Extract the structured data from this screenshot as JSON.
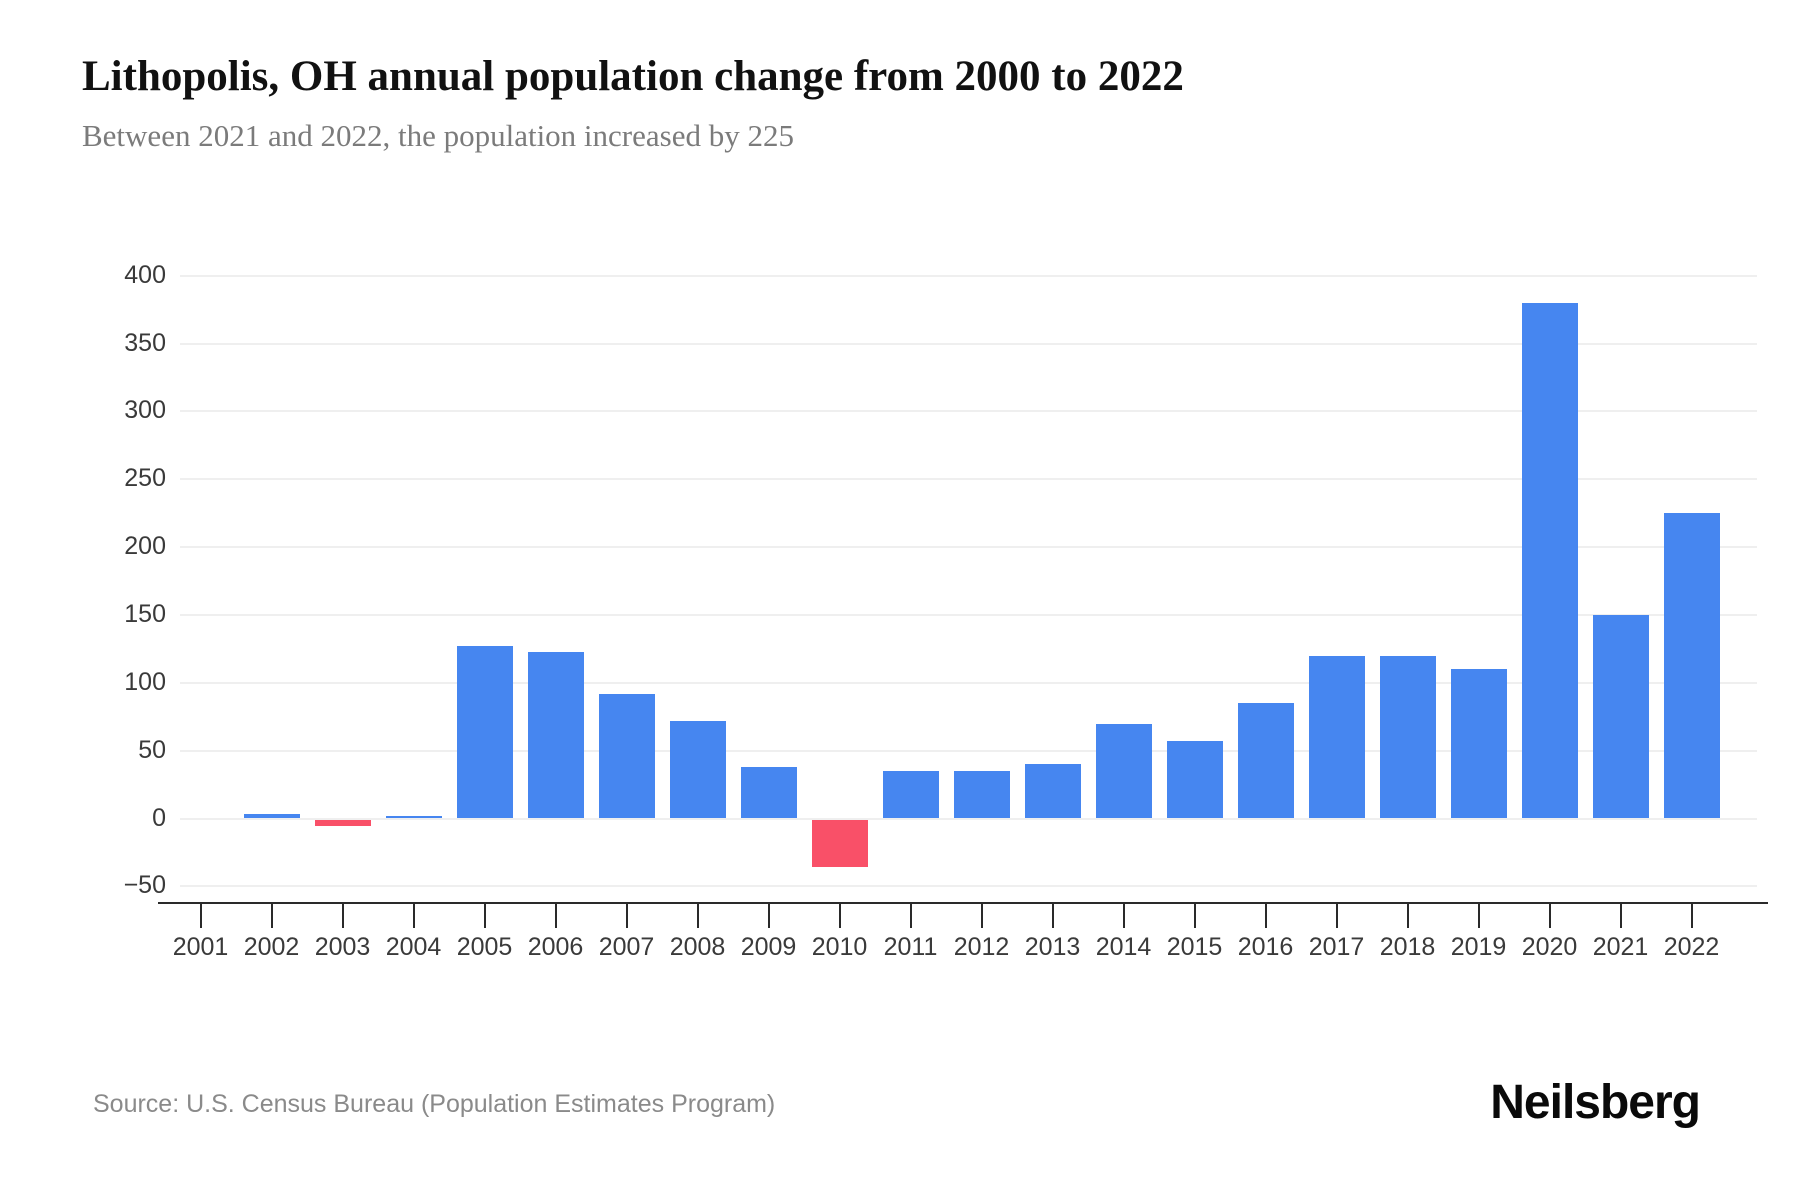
{
  "header": {
    "title": "Lithopolis, OH annual population change from 2000 to 2022",
    "subtitle": "Between 2021 and 2022, the population increased by 225"
  },
  "footer": {
    "source": "Source: U.S. Census Bureau (Population Estimates Program)",
    "brand": "Neilsberg"
  },
  "colors": {
    "positive_bar": "#4686f0",
    "negative_bar": "#f95068",
    "gridline": "#efefef",
    "axis": "#2a2a2a",
    "title": "#111111",
    "subtitle": "#7b7b7b",
    "tick_label": "#3a3a3a",
    "source_text": "#8a8a8a"
  },
  "chart_data": {
    "type": "bar",
    "title": "Lithopolis, OH annual population change from 2000 to 2022",
    "subtitle": "Between 2021 and 2022, the population increased by 225",
    "xlabel": "",
    "ylabel": "",
    "categories": [
      2001,
      2002,
      2003,
      2004,
      2005,
      2006,
      2007,
      2008,
      2009,
      2010,
      2011,
      2012,
      2013,
      2014,
      2015,
      2016,
      2017,
      2018,
      2019,
      2020,
      2021,
      2022
    ],
    "values": [
      0,
      3,
      -5,
      2,
      127,
      123,
      92,
      72,
      38,
      -35,
      35,
      35,
      40,
      70,
      57,
      85,
      120,
      120,
      110,
      380,
      150,
      225
    ],
    "ylim": [
      -50,
      400
    ],
    "ytick_step": 50,
    "ytick_labels": [
      "400",
      "350",
      "300",
      "250",
      "200",
      "150",
      "100",
      "50",
      "0",
      "−50"
    ],
    "grid": "horizontal",
    "legend": "none",
    "negative_color_rule": "values below zero drawn in red/pink, others blue"
  }
}
